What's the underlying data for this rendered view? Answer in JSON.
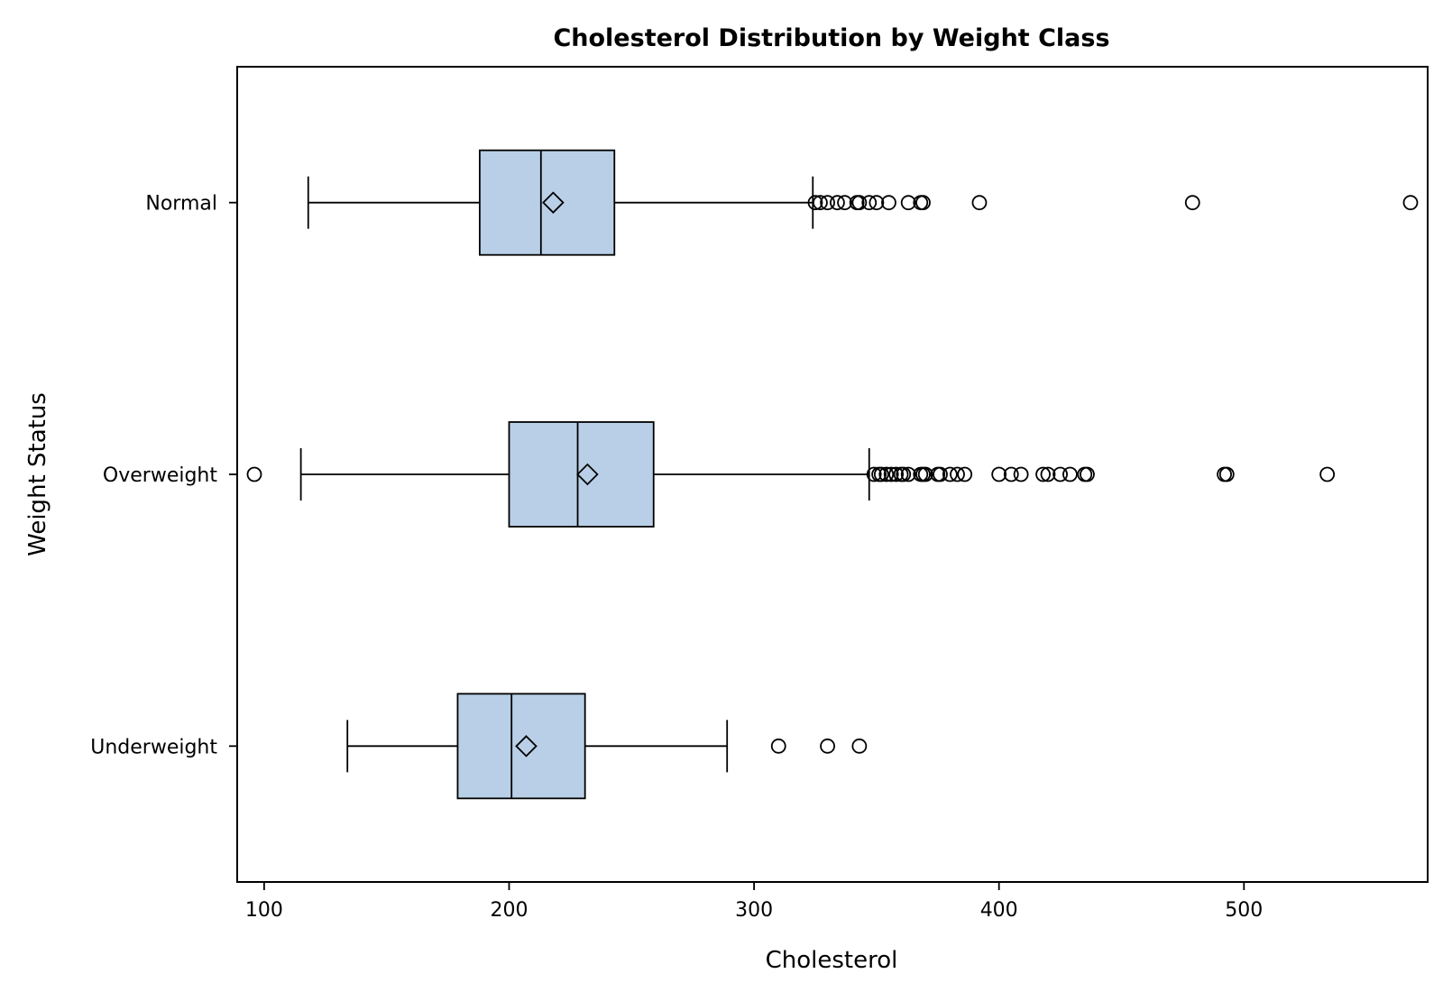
{
  "chart_data": {
    "type": "boxplot",
    "orientation": "horizontal",
    "title": "Cholesterol Distribution by Weight Class",
    "xlabel": "Cholesterol",
    "ylabel": "Weight Status",
    "xlim": [
      89,
      575
    ],
    "x_ticks": [
      100,
      200,
      300,
      400,
      500
    ],
    "grid": false,
    "box_color": "#b9cfe7",
    "categories": [
      "Normal",
      "Overweight",
      "Underweight"
    ],
    "groups": [
      {
        "name": "Normal",
        "whisker_low": 118,
        "q1": 188,
        "median": 213,
        "q3": 243,
        "whisker_high": 324,
        "mean": 218,
        "outliers": [
          325,
          327,
          330,
          334,
          337,
          342,
          343,
          347,
          350,
          355,
          363,
          368,
          369,
          392,
          479,
          568
        ]
      },
      {
        "name": "Overweight",
        "whisker_low": 115,
        "q1": 200,
        "median": 228,
        "q3": 259,
        "whisker_high": 347,
        "mean": 232,
        "outliers": [
          96,
          349,
          351,
          352,
          354,
          356,
          358,
          360,
          361,
          363,
          368,
          369,
          370,
          375,
          376,
          380,
          383,
          386,
          400,
          405,
          409,
          418,
          420,
          425,
          429,
          435,
          436,
          492,
          493,
          534
        ]
      },
      {
        "name": "Underweight",
        "whisker_low": 134,
        "q1": 179,
        "median": 201,
        "q3": 231,
        "whisker_high": 289,
        "mean": 207,
        "outliers": [
          310,
          330,
          343
        ]
      }
    ]
  }
}
